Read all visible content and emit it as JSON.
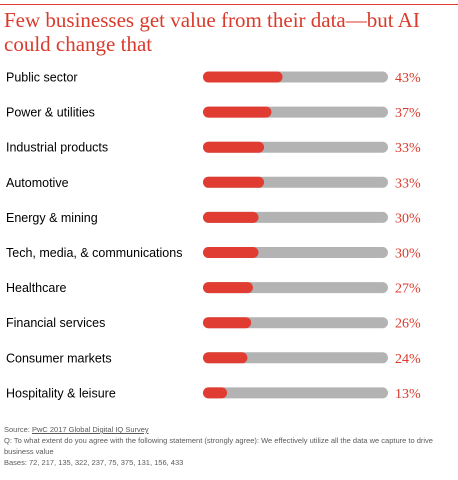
{
  "title": "Few businesses get value from their data—but AI could change that",
  "chart_data": {
    "type": "bar",
    "orientation": "horizontal",
    "categories": [
      "Public sector",
      "Power & utilities",
      "Industrial products",
      "Automotive",
      "Energy & mining",
      "Tech, media, & communications",
      "Healthcare",
      "Financial services",
      "Consumer markets",
      "Hospitality & leisure"
    ],
    "values": [
      43,
      37,
      33,
      33,
      30,
      30,
      27,
      26,
      24,
      13
    ],
    "value_labels": [
      "43%",
      "37%",
      "33%",
      "33%",
      "30%",
      "30%",
      "27%",
      "26%",
      "24%",
      "13%"
    ],
    "xlim": [
      0,
      100
    ],
    "bar_color": "#e03c31",
    "track_color": "#b3b3b3",
    "value_label_color": "#d93a2b"
  },
  "footer": {
    "source_prefix": "Source: ",
    "source_link": "PwC 2017 Global Digital IQ Survey",
    "question": "Q: To what extent do you agree with the following statement (strongly agree): We effectively utilize all the data we capture to drive business value",
    "bases": "Bases: 72, 217, 135, 322, 237, 75, 375, 131, 156, 433"
  }
}
